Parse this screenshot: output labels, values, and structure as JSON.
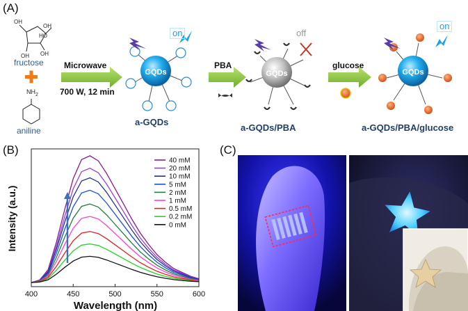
{
  "panels": {
    "a": "(A)",
    "b": "(B)",
    "c": "(C)"
  },
  "scheme": {
    "fructose": "fructose",
    "aniline": "aniline",
    "nh2": "NH",
    "nh2_sub": "2",
    "step1_top": "Microwave",
    "step1_bottom": "700 W, 12 min",
    "step2": "PBA",
    "step3": "glucose",
    "core_label": "GQDs",
    "product1": "a-GQDs",
    "product2": "a-GQDs/PBA",
    "product3": "a-GQDs/PBA/glucose",
    "on": "on",
    "off": "off",
    "ring_labels": {
      "oh": "OH",
      "ho": "HO"
    }
  },
  "chart_data": {
    "type": "line",
    "xlabel": "Wavelength (nm)",
    "ylabel": "Intensity (a.u.)",
    "xlim": [
      400,
      600
    ],
    "xticks": [
      400,
      450,
      500,
      550,
      600
    ],
    "ylim": [
      0,
      1
    ],
    "grid": false,
    "legend": "top-right",
    "peak_x": 470,
    "x": [
      400,
      410,
      420,
      430,
      440,
      450,
      460,
      470,
      480,
      490,
      500,
      510,
      520,
      530,
      540,
      550,
      560,
      570,
      580,
      590,
      600
    ],
    "shape": [
      0.0,
      0.02,
      0.1,
      0.32,
      0.58,
      0.82,
      0.97,
      1.0,
      0.96,
      0.86,
      0.74,
      0.62,
      0.5,
      0.39,
      0.3,
      0.22,
      0.16,
      0.11,
      0.08,
      0.05,
      0.03
    ],
    "series": [
      {
        "name": "40 mM",
        "peak": 0.95,
        "color": "#8b1a8b"
      },
      {
        "name": "20 mM",
        "peak": 0.86,
        "color": "#9b3fd6"
      },
      {
        "name": "10 mM",
        "peak": 0.79,
        "color": "#1f2f8f"
      },
      {
        "name": "5 mM",
        "peak": 0.7,
        "color": "#1a4fd8"
      },
      {
        "name": "2 mM",
        "peak": 0.6,
        "color": "#1f7f3a"
      },
      {
        "name": "1 mM",
        "peak": 0.51,
        "color": "#ff3ed6"
      },
      {
        "name": "0.5 mM",
        "peak": 0.4,
        "color": "#e02020"
      },
      {
        "name": "0.2 mM",
        "peak": 0.31,
        "color": "#22d622"
      },
      {
        "name": "0 mM",
        "peak": 0.22,
        "color": "#111111"
      }
    ]
  },
  "colors": {
    "arrow_green": "#8cc43c",
    "dot_blue": "#1aa3e6",
    "dot_grey": "#9a9a9a",
    "glucose_orange": "#e8641e",
    "uv_blue": "#2a2ad8"
  }
}
